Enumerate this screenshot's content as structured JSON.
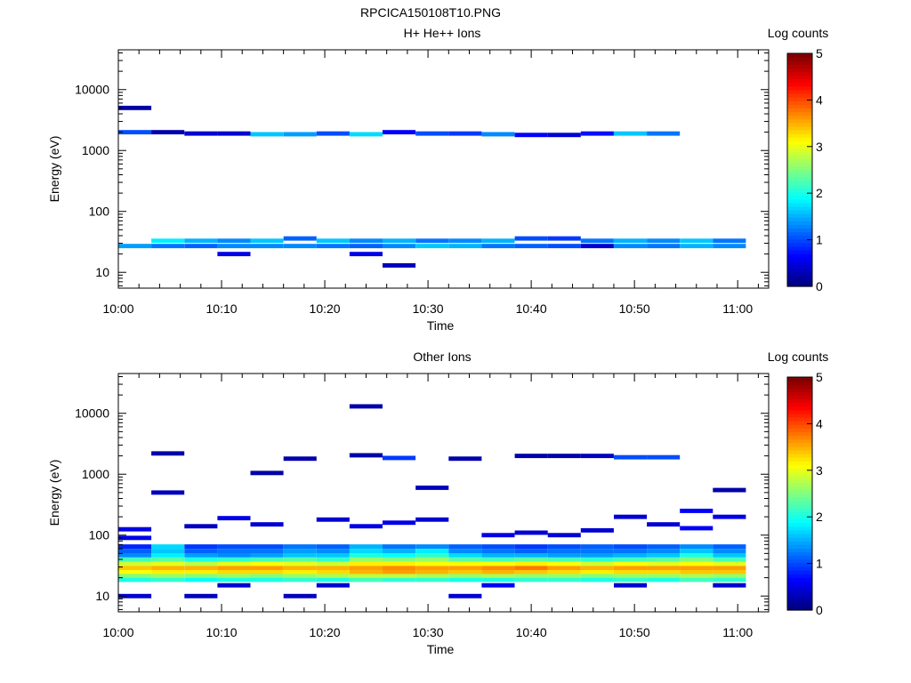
{
  "figure": {
    "filename": "RPCICA150108T10.PNG"
  },
  "chart_data": [
    {
      "type": "heatmap",
      "title": "H+ He++ Ions",
      "xlabel": "Time",
      "ylabel": "Energy (eV)",
      "colorbar_label": "Log counts",
      "x_ticks": [
        "10:00",
        "10:10",
        "10:20",
        "10:30",
        "10:40",
        "10:50",
        "11:00"
      ],
      "x_range_minutes": [
        0,
        63
      ],
      "y_scale": "log",
      "y_range": [
        5.5,
        45000
      ],
      "y_ticks": [
        "10",
        "100",
        "1000",
        "10000"
      ],
      "colorbar": {
        "range": [
          0,
          5
        ],
        "ticks": [
          "0",
          "1",
          "2",
          "3",
          "4",
          "5"
        ]
      },
      "time_bin_minutes": 3.2,
      "cells": [
        [
          0,
          2000,
          1.0
        ],
        [
          0,
          27,
          1.4
        ],
        [
          0,
          5000,
          0.2
        ],
        [
          1,
          27,
          1.2
        ],
        [
          1,
          33,
          1.8
        ],
        [
          1,
          2000,
          0.2
        ],
        [
          2,
          27,
          1.1
        ],
        [
          2,
          33,
          1.5
        ],
        [
          2,
          1900,
          0.4
        ],
        [
          3,
          20,
          0.5
        ],
        [
          3,
          27,
          1.3
        ],
        [
          3,
          33,
          1.3
        ],
        [
          3,
          1900,
          0.4
        ],
        [
          4,
          27,
          1.3
        ],
        [
          4,
          33,
          1.6
        ],
        [
          4,
          1850,
          1.6
        ],
        [
          5,
          27,
          1.3
        ],
        [
          5,
          36,
          1.1
        ],
        [
          5,
          1850,
          1.4
        ],
        [
          6,
          27,
          1.2
        ],
        [
          6,
          33,
          1.6
        ],
        [
          6,
          1900,
          1.0
        ],
        [
          7,
          20,
          0.5
        ],
        [
          7,
          27,
          1.1
        ],
        [
          7,
          33,
          1.3
        ],
        [
          7,
          1850,
          1.7
        ],
        [
          8,
          13,
          0.3
        ],
        [
          8,
          27,
          1.3
        ],
        [
          8,
          33,
          1.5
        ],
        [
          8,
          2000,
          0.6
        ],
        [
          9,
          27,
          1.6
        ],
        [
          9,
          33,
          1.2
        ],
        [
          9,
          1900,
          1.0
        ],
        [
          10,
          27,
          1.5
        ],
        [
          10,
          33,
          1.3
        ],
        [
          10,
          1900,
          0.9
        ],
        [
          11,
          27,
          1.2
        ],
        [
          11,
          33,
          1.5
        ],
        [
          11,
          1850,
          1.3
        ],
        [
          12,
          27,
          1.1
        ],
        [
          12,
          36,
          1.0
        ],
        [
          12,
          1800,
          0.6
        ],
        [
          13,
          27,
          1.0
        ],
        [
          13,
          36,
          0.9
        ],
        [
          13,
          1800,
          0.4
        ],
        [
          14,
          27,
          0.4
        ],
        [
          14,
          33,
          1.2
        ],
        [
          14,
          1900,
          0.7
        ],
        [
          15,
          27,
          1.3
        ],
        [
          15,
          33,
          1.5
        ],
        [
          15,
          1900,
          1.6
        ],
        [
          16,
          27,
          1.2
        ],
        [
          16,
          33,
          1.3
        ],
        [
          16,
          1900,
          1.2
        ],
        [
          17,
          27,
          1.5
        ],
        [
          17,
          33,
          1.6
        ],
        [
          18,
          27,
          1.3
        ],
        [
          18,
          33,
          1.2
        ]
      ]
    },
    {
      "type": "heatmap",
      "title": "Other Ions",
      "xlabel": "Time",
      "ylabel": "Energy (eV)",
      "colorbar_label": "Log counts",
      "x_ticks": [
        "10:00",
        "10:10",
        "10:20",
        "10:30",
        "10:40",
        "10:50",
        "11:00"
      ],
      "x_range_minutes": [
        0,
        63
      ],
      "y_scale": "log",
      "y_range": [
        5.5,
        45000
      ],
      "y_ticks": [
        "10",
        "100",
        "1000",
        "10000"
      ],
      "colorbar": {
        "range": [
          0,
          5
        ],
        "ticks": [
          "0",
          "1",
          "2",
          "3",
          "4",
          "5"
        ]
      },
      "time_bin_minutes": 3.2,
      "cells": [
        [
          0,
          18.5,
          2.0
        ],
        [
          0,
          21.5,
          2.5
        ],
        [
          0,
          25,
          3.1
        ],
        [
          0,
          29,
          3.4
        ],
        [
          0,
          34,
          2.9
        ],
        [
          0,
          40,
          2.2
        ],
        [
          0,
          47,
          1.3
        ],
        [
          0,
          55,
          1.1
        ],
        [
          0,
          65,
          0.8
        ],
        [
          1,
          18.5,
          2.1
        ],
        [
          1,
          21.5,
          2.6
        ],
        [
          1,
          25,
          3.2
        ],
        [
          1,
          29,
          3.5
        ],
        [
          1,
          34,
          3.0
        ],
        [
          1,
          40,
          2.3
        ],
        [
          1,
          47,
          1.8
        ],
        [
          1,
          55,
          1.6
        ],
        [
          1,
          65,
          1.7
        ],
        [
          2,
          18.5,
          1.9
        ],
        [
          2,
          21.5,
          2.5
        ],
        [
          2,
          25,
          3.2
        ],
        [
          2,
          29,
          3.5
        ],
        [
          2,
          34,
          2.8
        ],
        [
          2,
          40,
          2.0
        ],
        [
          2,
          47,
          1.4
        ],
        [
          2,
          55,
          1.1
        ],
        [
          2,
          65,
          0.9
        ],
        [
          3,
          18.5,
          2.0
        ],
        [
          3,
          21.5,
          2.6
        ],
        [
          3,
          25,
          3.3
        ],
        [
          3,
          29,
          3.6
        ],
        [
          3,
          34,
          3.0
        ],
        [
          3,
          40,
          2.1
        ],
        [
          3,
          47,
          1.3
        ],
        [
          3,
          55,
          1.2
        ],
        [
          3,
          65,
          1.0
        ],
        [
          4,
          18.5,
          2.0
        ],
        [
          4,
          21.5,
          2.5
        ],
        [
          4,
          25,
          3.3
        ],
        [
          4,
          29,
          3.6
        ],
        [
          4,
          34,
          3.1
        ],
        [
          4,
          40,
          2.2
        ],
        [
          4,
          47,
          1.4
        ],
        [
          4,
          55,
          1.2
        ],
        [
          4,
          65,
          1.0
        ],
        [
          5,
          18.5,
          2.1
        ],
        [
          5,
          21.5,
          2.6
        ],
        [
          5,
          25,
          3.2
        ],
        [
          5,
          29,
          3.5
        ],
        [
          5,
          34,
          3.0
        ],
        [
          5,
          40,
          2.3
        ],
        [
          5,
          47,
          1.6
        ],
        [
          5,
          55,
          1.4
        ],
        [
          5,
          65,
          1.2
        ],
        [
          6,
          18.5,
          2.0
        ],
        [
          6,
          21.5,
          2.7
        ],
        [
          6,
          25,
          3.3
        ],
        [
          6,
          29,
          3.5
        ],
        [
          6,
          34,
          2.9
        ],
        [
          6,
          40,
          2.1
        ],
        [
          6,
          47,
          1.6
        ],
        [
          6,
          55,
          1.3
        ],
        [
          6,
          65,
          1.1
        ],
        [
          7,
          18.5,
          2.2
        ],
        [
          7,
          21.5,
          2.8
        ],
        [
          7,
          25,
          3.5
        ],
        [
          7,
          29,
          3.6
        ],
        [
          7,
          34,
          3.2
        ],
        [
          7,
          40,
          2.6
        ],
        [
          7,
          47,
          2.0
        ],
        [
          7,
          55,
          1.7
        ],
        [
          7,
          65,
          1.5
        ],
        [
          8,
          18.5,
          2.1
        ],
        [
          8,
          21.5,
          2.8
        ],
        [
          8,
          25,
          3.6
        ],
        [
          8,
          29,
          3.7
        ],
        [
          8,
          34,
          3.2
        ],
        [
          8,
          40,
          2.5
        ],
        [
          8,
          47,
          1.9
        ],
        [
          8,
          55,
          1.5
        ],
        [
          8,
          65,
          1.2
        ],
        [
          9,
          18.5,
          2.1
        ],
        [
          9,
          21.5,
          2.7
        ],
        [
          9,
          25,
          3.5
        ],
        [
          9,
          29,
          3.6
        ],
        [
          9,
          34,
          3.1
        ],
        [
          9,
          40,
          2.6
        ],
        [
          9,
          47,
          2.1
        ],
        [
          9,
          55,
          1.8
        ],
        [
          9,
          65,
          1.3
        ],
        [
          10,
          18.5,
          2.0
        ],
        [
          10,
          21.5,
          2.6
        ],
        [
          10,
          25,
          3.4
        ],
        [
          10,
          29,
          3.6
        ],
        [
          10,
          34,
          3.1
        ],
        [
          10,
          40,
          2.3
        ],
        [
          10,
          47,
          1.7
        ],
        [
          10,
          55,
          1.3
        ],
        [
          10,
          65,
          1.1
        ],
        [
          11,
          18.5,
          2.0
        ],
        [
          11,
          21.5,
          2.7
        ],
        [
          11,
          25,
          3.5
        ],
        [
          11,
          29,
          3.7
        ],
        [
          11,
          34,
          3.1
        ],
        [
          11,
          40,
          2.2
        ],
        [
          11,
          47,
          1.5
        ],
        [
          11,
          55,
          1.2
        ],
        [
          11,
          65,
          1.0
        ],
        [
          12,
          18.5,
          2.1
        ],
        [
          12,
          21.5,
          2.6
        ],
        [
          12,
          25,
          3.4
        ],
        [
          12,
          29,
          3.8
        ],
        [
          12,
          34,
          3.2
        ],
        [
          12,
          40,
          2.3
        ],
        [
          12,
          47,
          1.5
        ],
        [
          12,
          55,
          1.1
        ],
        [
          12,
          65,
          0.9
        ],
        [
          13,
          18.5,
          2.1
        ],
        [
          13,
          21.5,
          2.6
        ],
        [
          13,
          25,
          3.3
        ],
        [
          13,
          29,
          3.6
        ],
        [
          13,
          34,
          3.1
        ],
        [
          13,
          40,
          2.2
        ],
        [
          13,
          47,
          1.4
        ],
        [
          13,
          55,
          1.2
        ],
        [
          13,
          65,
          1.0
        ],
        [
          14,
          18.5,
          2.0
        ],
        [
          14,
          21.5,
          2.5
        ],
        [
          14,
          25,
          3.2
        ],
        [
          14,
          29,
          3.5
        ],
        [
          14,
          34,
          2.9
        ],
        [
          14,
          40,
          2.1
        ],
        [
          14,
          47,
          1.4
        ],
        [
          14,
          55,
          1.2
        ],
        [
          14,
          65,
          1.1
        ],
        [
          15,
          18.5,
          2.1
        ],
        [
          15,
          21.5,
          2.6
        ],
        [
          15,
          25,
          3.3
        ],
        [
          15,
          29,
          3.6
        ],
        [
          15,
          34,
          3.1
        ],
        [
          15,
          40,
          2.2
        ],
        [
          15,
          47,
          1.5
        ],
        [
          15,
          55,
          1.2
        ],
        [
          15,
          65,
          1.0
        ],
        [
          16,
          18.5,
          2.0
        ],
        [
          16,
          21.5,
          2.6
        ],
        [
          16,
          25,
          3.3
        ],
        [
          16,
          29,
          3.6
        ],
        [
          16,
          34,
          3.0
        ],
        [
          16,
          40,
          2.3
        ],
        [
          16,
          47,
          1.6
        ],
        [
          16,
          55,
          1.3
        ],
        [
          16,
          65,
          1.1
        ],
        [
          17,
          18.5,
          2.2
        ],
        [
          17,
          21.5,
          2.7
        ],
        [
          17,
          25,
          3.4
        ],
        [
          17,
          29,
          3.6
        ],
        [
          17,
          34,
          3.1
        ],
        [
          17,
          40,
          2.5
        ],
        [
          17,
          47,
          2.0
        ],
        [
          17,
          55,
          1.6
        ],
        [
          17,
          65,
          1.3
        ],
        [
          18,
          18.5,
          2.1
        ],
        [
          18,
          21.5,
          2.6
        ],
        [
          18,
          25,
          3.4
        ],
        [
          18,
          29,
          3.6
        ],
        [
          18,
          34,
          3.0
        ],
        [
          18,
          40,
          2.2
        ],
        [
          18,
          47,
          1.6
        ],
        [
          18,
          55,
          1.3
        ],
        [
          18,
          65,
          1.1
        ],
        [
          0,
          10,
          0.4
        ],
        [
          0,
          90,
          0.5
        ],
        [
          0,
          125,
          0.5
        ],
        [
          1,
          500,
          0.3
        ],
        [
          1,
          2200,
          0.2
        ],
        [
          2,
          10,
          0.3
        ],
        [
          2,
          140,
          0.3
        ],
        [
          3,
          15,
          0.4
        ],
        [
          3,
          190,
          0.5
        ],
        [
          4,
          1050,
          0.2
        ],
        [
          4,
          150,
          0.4
        ],
        [
          5,
          10,
          0.3
        ],
        [
          5,
          1800,
          0.2
        ],
        [
          6,
          15,
          0.4
        ],
        [
          6,
          180,
          0.4
        ],
        [
          7,
          2050,
          0.2
        ],
        [
          7,
          13000,
          0.2
        ],
        [
          7,
          140,
          0.5
        ],
        [
          8,
          1850,
          0.9
        ],
        [
          8,
          160,
          0.5
        ],
        [
          9,
          600,
          0.3
        ],
        [
          9,
          180,
          0.4
        ],
        [
          10,
          10,
          0.4
        ],
        [
          10,
          1800,
          0.2
        ],
        [
          11,
          15,
          0.6
        ],
        [
          11,
          100,
          0.5
        ],
        [
          12,
          2000,
          0.2
        ],
        [
          12,
          110,
          0.4
        ],
        [
          13,
          2000,
          0.2
        ],
        [
          13,
          100,
          0.4
        ],
        [
          14,
          2000,
          0.3
        ],
        [
          14,
          120,
          0.4
        ],
        [
          15,
          15,
          0.4
        ],
        [
          15,
          1900,
          1.0
        ],
        [
          15,
          200,
          0.4
        ],
        [
          16,
          1900,
          1.0
        ],
        [
          16,
          150,
          0.4
        ],
        [
          17,
          250,
          0.6
        ],
        [
          17,
          130,
          0.6
        ],
        [
          18,
          15,
          0.4
        ],
        [
          18,
          550,
          0.2
        ],
        [
          18,
          200,
          0.5
        ]
      ]
    }
  ]
}
